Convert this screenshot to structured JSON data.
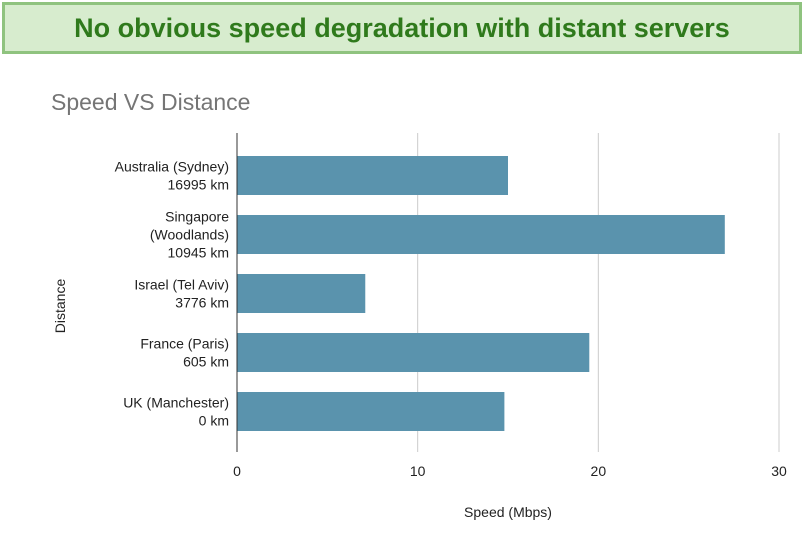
{
  "banner": {
    "text": "No obvious speed degradation with distant servers"
  },
  "colors": {
    "bar": "#5a93ad",
    "grid": "#cccccc",
    "axis": "#333333",
    "banner_bg": "#d7ecce",
    "banner_border": "#8fc37f",
    "banner_text": "#2f7a1c"
  },
  "chart_data": {
    "type": "bar",
    "orientation": "horizontal",
    "title": "Speed VS Distance",
    "xlabel": "Speed (Mbps)",
    "ylabel": "Distance",
    "xlim": [
      0,
      30
    ],
    "xticks": [
      0,
      10,
      20,
      30
    ],
    "grid": true,
    "categories": [
      [
        "Australia (Sydney)",
        "16995 km"
      ],
      [
        "Singapore",
        "(Woodlands)",
        "10945 km"
      ],
      [
        "Israel (Tel Aviv)",
        "3776 km"
      ],
      [
        "France (Paris)",
        "605 km"
      ],
      [
        "UK (Manchester)",
        "0 km"
      ]
    ],
    "values": [
      15.0,
      27.0,
      7.1,
      19.5,
      14.8
    ]
  }
}
